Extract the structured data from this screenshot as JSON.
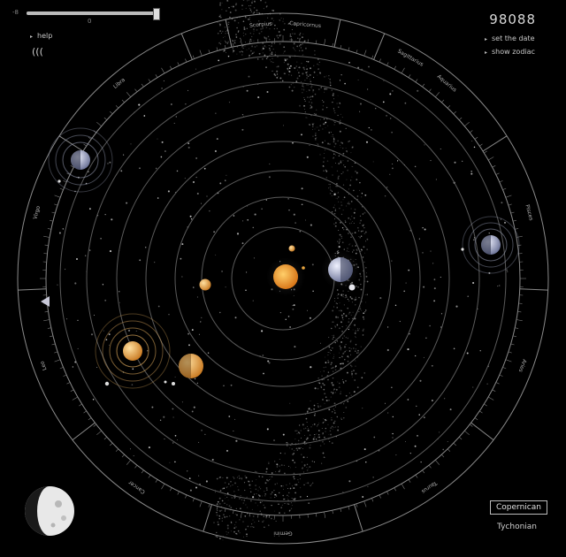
{
  "timeline": {
    "left_label": "-8",
    "mid_label": "0",
    "position": 0.97
  },
  "menu": {
    "help_label": "help",
    "sound_icon_glyph": "(((",
    "set_date_label": "set the date",
    "show_zodiac_label": "show zodiac"
  },
  "date_display": "98088",
  "zodiac": [
    {
      "name": "Capricornus",
      "angle_deg": -85
    },
    {
      "name": "Aquarius",
      "angle_deg": -50
    },
    {
      "name": "Pisces",
      "angle_deg": -15
    },
    {
      "name": "Aries",
      "angle_deg": 20
    },
    {
      "name": "Taurus",
      "angle_deg": 55
    },
    {
      "name": "Gemini",
      "angle_deg": 90
    },
    {
      "name": "Cancer",
      "angle_deg": 125
    },
    {
      "name": "Leo",
      "angle_deg": 160
    },
    {
      "name": "Virgo",
      "angle_deg": 195
    },
    {
      "name": "Libra",
      "angle_deg": 230
    },
    {
      "name": "Scorpius",
      "angle_deg": 265
    },
    {
      "name": "Sagittarius",
      "angle_deg": 300
    }
  ],
  "modes": {
    "copernican_label": "Copernican",
    "tychonian_label": "Tychonian",
    "active": "copernican"
  },
  "colors": {
    "background": "#000000",
    "orbit": "#5a5a5a",
    "ring": "#8a8a8a",
    "sun": "#e8941f",
    "planet_warm": "#e9a640",
    "planet_cool": "#aab0c8"
  },
  "icons": {
    "pointer": "triangle-pointer-icon",
    "moon": "moon-phase-icon",
    "sound": "sound-icon"
  }
}
